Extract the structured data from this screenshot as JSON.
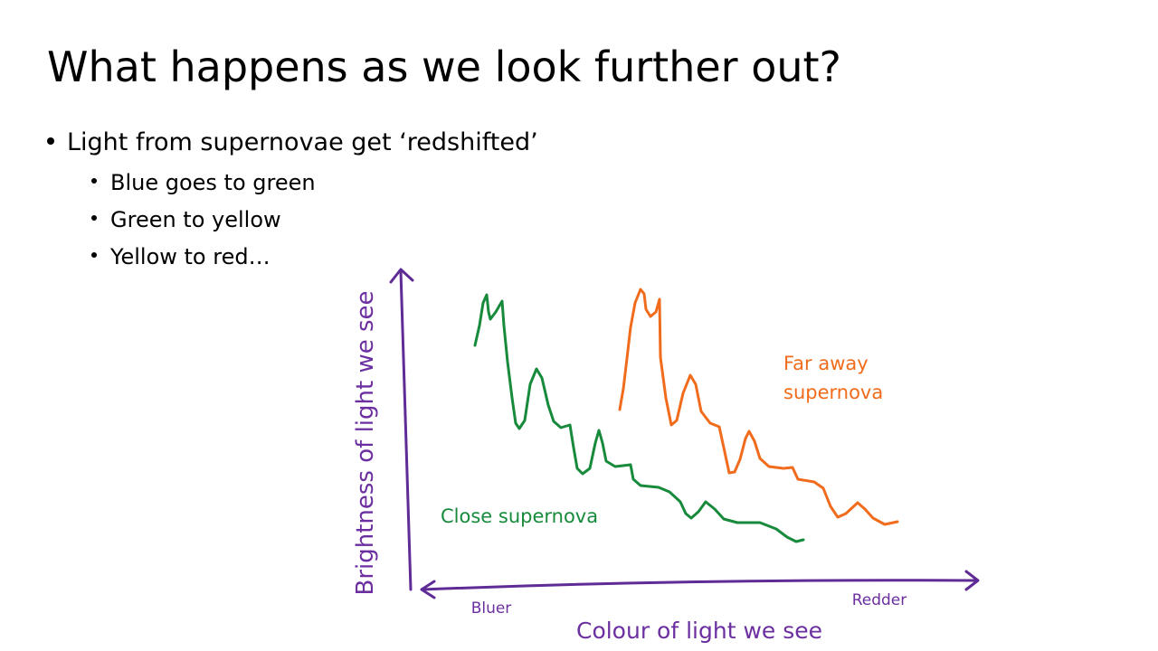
{
  "title": "What happens as we look further out?",
  "bullets": [
    {
      "text": "Light from supernovae get ‘redshifted’",
      "sub": [
        "Blue goes to green",
        "Green to yellow",
        "Yellow to red…"
      ]
    }
  ],
  "diagram": {
    "y_axis_label": "Brightness of light we see",
    "x_axis_label": "Colour of light we see",
    "x_left_label": "Bluer",
    "x_right_label": "Redder",
    "close_label": "Close supernova",
    "far_label": [
      "Far away",
      "supernova"
    ]
  }
}
